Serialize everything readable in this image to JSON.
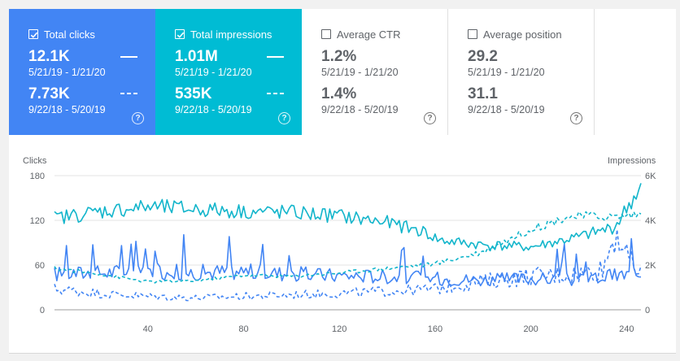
{
  "tiles": {
    "clicks": {
      "label": "Total clicks",
      "checked": true,
      "current_value": "12.1K",
      "current_range": "5/21/19 - 1/21/20",
      "previous_value": "7.73K",
      "previous_range": "9/22/18 - 5/20/19"
    },
    "impressions": {
      "label": "Total impressions",
      "checked": true,
      "current_value": "1.01M",
      "current_range": "5/21/19 - 1/21/20",
      "previous_value": "535K",
      "previous_range": "9/22/18 - 5/20/19"
    },
    "ctr": {
      "label": "Average CTR",
      "checked": false,
      "current_value": "1.2%",
      "current_range": "5/21/19 - 1/21/20",
      "previous_value": "1.4%",
      "previous_range": "9/22/18 - 5/20/19"
    },
    "position": {
      "label": "Average position",
      "checked": false,
      "current_value": "29.2",
      "current_range": "5/21/19 - 1/21/20",
      "previous_value": "31.1",
      "previous_range": "9/22/18 - 5/20/19"
    },
    "help_glyph": "?"
  },
  "colors": {
    "clicks": "#4285f4",
    "impressions": "#12b5cb",
    "grid": "#e3e3e3",
    "axis_text": "#5f6368"
  },
  "chart_data": {
    "type": "line",
    "left_axis_label": "Clicks",
    "right_axis_label": "Impressions",
    "left_ylim": [
      0,
      180
    ],
    "right_ylim": [
      0,
      6000
    ],
    "left_ticks": [
      "0",
      "60",
      "120",
      "180"
    ],
    "right_ticks": [
      "0",
      "2K",
      "4K",
      "6K"
    ],
    "x_ticks": [
      "40",
      "80",
      "120",
      "160",
      "200",
      "240"
    ],
    "x_range": [
      1,
      246
    ],
    "series": [
      {
        "name": "Clicks (5/21/19 - 1/21/20)",
        "axis": "left",
        "style": "solid",
        "anchors": [
          [
            1,
            48
          ],
          [
            20,
            50
          ],
          [
            40,
            52
          ],
          [
            60,
            50
          ],
          [
            80,
            52
          ],
          [
            100,
            48
          ],
          [
            120,
            46
          ],
          [
            140,
            45
          ],
          [
            160,
            42
          ],
          [
            180,
            40
          ],
          [
            200,
            42
          ],
          [
            220,
            40
          ],
          [
            235,
            46
          ],
          [
            246,
            48
          ]
        ]
      },
      {
        "name": "Clicks (9/22/18 - 5/20/19)",
        "axis": "left",
        "style": "dashed",
        "anchors": [
          [
            1,
            28
          ],
          [
            20,
            22
          ],
          [
            40,
            18
          ],
          [
            60,
            16
          ],
          [
            80,
            18
          ],
          [
            100,
            20
          ],
          [
            120,
            22
          ],
          [
            140,
            25
          ],
          [
            160,
            28
          ],
          [
            180,
            38
          ],
          [
            200,
            45
          ],
          [
            220,
            48
          ],
          [
            230,
            55
          ],
          [
            236,
            110
          ],
          [
            240,
            70
          ],
          [
            246,
            48
          ]
        ]
      },
      {
        "name": "Impressions (5/21/19 - 1/21/20)",
        "axis": "right",
        "style": "solid",
        "anchors": [
          [
            1,
            4100
          ],
          [
            20,
            4400
          ],
          [
            40,
            4600
          ],
          [
            60,
            4500
          ],
          [
            80,
            4400
          ],
          [
            100,
            4350
          ],
          [
            120,
            4200
          ],
          [
            140,
            3900
          ],
          [
            155,
            3500
          ],
          [
            162,
            3100
          ],
          [
            180,
            2900
          ],
          [
            200,
            2800
          ],
          [
            220,
            3250
          ],
          [
            235,
            3700
          ],
          [
            246,
            5500
          ]
        ]
      },
      {
        "name": "Impressions (9/22/18 - 5/20/19)",
        "axis": "right",
        "style": "dashed",
        "anchors": [
          [
            1,
            1850
          ],
          [
            20,
            1600
          ],
          [
            40,
            1250
          ],
          [
            60,
            1300
          ],
          [
            80,
            1550
          ],
          [
            100,
            1500
          ],
          [
            120,
            1650
          ],
          [
            140,
            1850
          ],
          [
            160,
            2050
          ],
          [
            180,
            2600
          ],
          [
            200,
            3600
          ],
          [
            215,
            4150
          ],
          [
            225,
            4200
          ],
          [
            235,
            4150
          ],
          [
            246,
            4300
          ]
        ]
      }
    ]
  }
}
